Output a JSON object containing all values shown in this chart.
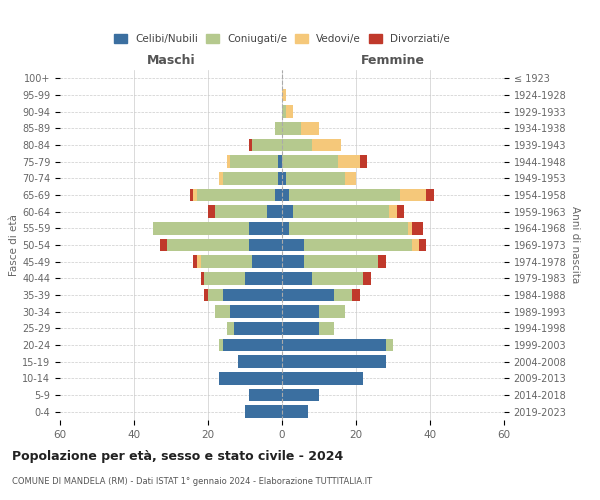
{
  "age_groups": [
    "0-4",
    "5-9",
    "10-14",
    "15-19",
    "20-24",
    "25-29",
    "30-34",
    "35-39",
    "40-44",
    "45-49",
    "50-54",
    "55-59",
    "60-64",
    "65-69",
    "70-74",
    "75-79",
    "80-84",
    "85-89",
    "90-94",
    "95-99",
    "100+"
  ],
  "birth_years": [
    "2019-2023",
    "2014-2018",
    "2009-2013",
    "2004-2008",
    "1999-2003",
    "1994-1998",
    "1989-1993",
    "1984-1988",
    "1979-1983",
    "1974-1978",
    "1969-1973",
    "1964-1968",
    "1959-1963",
    "1954-1958",
    "1949-1953",
    "1944-1948",
    "1939-1943",
    "1934-1938",
    "1929-1933",
    "1924-1928",
    "≤ 1923"
  ],
  "males": {
    "celibi": [
      10,
      9,
      17,
      12,
      16,
      13,
      14,
      16,
      10,
      8,
      9,
      9,
      4,
      2,
      1,
      1,
      0,
      0,
      0,
      0,
      0
    ],
    "coniugati": [
      0,
      0,
      0,
      0,
      1,
      2,
      4,
      4,
      11,
      14,
      22,
      26,
      14,
      21,
      15,
      13,
      8,
      2,
      0,
      0,
      0
    ],
    "vedovi": [
      0,
      0,
      0,
      0,
      0,
      0,
      0,
      0,
      0,
      1,
      0,
      0,
      0,
      1,
      1,
      1,
      0,
      0,
      0,
      0,
      0
    ],
    "divorziati": [
      0,
      0,
      0,
      0,
      0,
      0,
      0,
      1,
      1,
      1,
      2,
      0,
      2,
      1,
      0,
      0,
      1,
      0,
      0,
      0,
      0
    ]
  },
  "females": {
    "nubili": [
      7,
      10,
      22,
      28,
      28,
      10,
      10,
      14,
      8,
      6,
      6,
      2,
      3,
      2,
      1,
      0,
      0,
      0,
      0,
      0,
      0
    ],
    "coniugate": [
      0,
      0,
      0,
      0,
      2,
      4,
      7,
      5,
      14,
      20,
      29,
      32,
      26,
      30,
      16,
      15,
      8,
      5,
      1,
      0,
      0
    ],
    "vedove": [
      0,
      0,
      0,
      0,
      0,
      0,
      0,
      0,
      0,
      0,
      2,
      1,
      2,
      7,
      3,
      6,
      8,
      5,
      2,
      1,
      0
    ],
    "divorziate": [
      0,
      0,
      0,
      0,
      0,
      0,
      0,
      2,
      2,
      2,
      2,
      3,
      2,
      2,
      0,
      2,
      0,
      0,
      0,
      0,
      0
    ]
  },
  "colors": {
    "celibi": "#3b6fa0",
    "coniugati": "#b5c98e",
    "vedovi": "#f5c87a",
    "divorziati": "#c0392b"
  },
  "title": "Popolazione per età, sesso e stato civile - 2024",
  "subtitle": "COMUNE DI MANDELA (RM) - Dati ISTAT 1° gennaio 2024 - Elaborazione TUTTITALIA.IT",
  "ylabel_left": "Fasce di età",
  "ylabel_right": "Anni di nascita",
  "xlim": 60,
  "background_color": "#ffffff",
  "grid_color": "#cccccc",
  "bar_height": 0.75
}
